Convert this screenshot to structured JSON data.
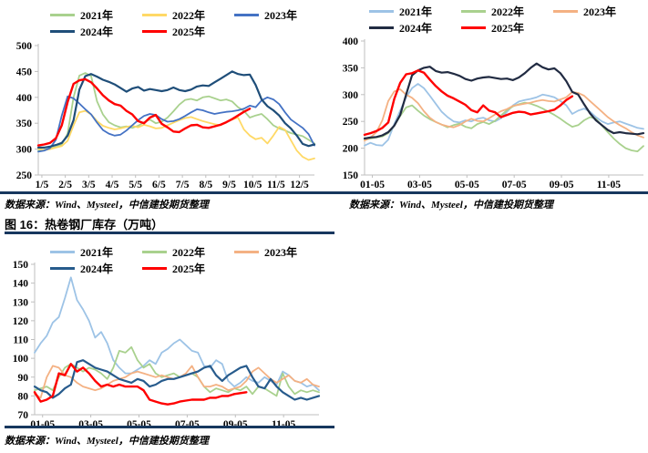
{
  "page": {
    "background": "#ffffff",
    "rule_color": "#17375E",
    "axis_color": "#BFBFBF"
  },
  "section": {
    "figure16_title": "图 16：热卷钢厂库存（万吨）"
  },
  "chart_data": [
    {
      "type": "line",
      "title": "",
      "source_note": "数据来源：Wind、Mysteel，中信建投期货整理",
      "ylim": [
        250,
        500
      ],
      "yticks": [
        250,
        300,
        350,
        400,
        450,
        500
      ],
      "xtick_labels": [
        "1/5",
        "2/5",
        "3/5",
        "4/5",
        "5/5",
        "6/5",
        "7/5",
        "8/5",
        "9/5",
        "10/5",
        "11/5",
        "12/5"
      ],
      "xtick_start_frac": 0.013,
      "xtick_step_frac": 0.0848,
      "points_per_year": 48,
      "grid": false,
      "legend_position": "top",
      "series": [
        {
          "name": "2021年",
          "color": "#A9D18E",
          "width": 1.8,
          "values": [
            297,
            299,
            301,
            304,
            309,
            330,
            400,
            442,
            447,
            441,
            392,
            367,
            352,
            346,
            342,
            344,
            341,
            345,
            352,
            357,
            350,
            353,
            361,
            373,
            386,
            395,
            397,
            394,
            400,
            402,
            398,
            394,
            396,
            392,
            381,
            374,
            361,
            365,
            368,
            358,
            346,
            340,
            336,
            331,
            328,
            325,
            318,
            311
          ]
        },
        {
          "name": "2022年",
          "color": "#FFD966",
          "width": 1.8,
          "values": [
            301,
            298,
            300,
            303,
            306,
            316,
            346,
            371,
            374,
            367,
            354,
            345,
            341,
            338,
            340,
            343,
            345,
            342,
            347,
            344,
            340,
            341,
            346,
            351,
            356,
            360,
            362,
            358,
            354,
            351,
            348,
            346,
            352,
            357,
            361,
            338,
            326,
            319,
            322,
            311,
            326,
            343,
            337,
            317,
            297,
            285,
            279,
            282
          ]
        },
        {
          "name": "2023年",
          "color": "#4472C4",
          "width": 1.8,
          "values": [
            295,
            297,
            302,
            318,
            365,
            402,
            398,
            388,
            377,
            367,
            351,
            337,
            330,
            326,
            328,
            336,
            346,
            356,
            364,
            368,
            366,
            358,
            353,
            354,
            358,
            364,
            371,
            377,
            375,
            371,
            368,
            370,
            372,
            373,
            375,
            378,
            384,
            381,
            394,
            400,
            396,
            387,
            371,
            357,
            349,
            341,
            329,
            307
          ]
        },
        {
          "name": "2024年",
          "color": "#1F4E79",
          "width": 2.2,
          "values": [
            303,
            303,
            305,
            308,
            312,
            326,
            356,
            415,
            441,
            445,
            440,
            434,
            430,
            425,
            418,
            411,
            417,
            420,
            413,
            416,
            414,
            412,
            414,
            419,
            414,
            412,
            415,
            421,
            423,
            422,
            429,
            436,
            443,
            450,
            445,
            443,
            444,
            424,
            396,
            383,
            375,
            365,
            350,
            340,
            326,
            310,
            306,
            309
          ]
        },
        {
          "name": "2025年",
          "color": "#FF0000",
          "width": 2.4,
          "values": [
            307,
            309,
            312,
            321,
            346,
            391,
            426,
            433,
            435,
            429,
            417,
            404,
            394,
            387,
            384,
            374,
            367,
            354,
            350,
            361,
            366,
            349,
            342,
            334,
            333,
            340,
            346,
            347,
            342,
            341,
            344,
            347,
            352,
            358,
            365,
            372,
            378
          ]
        }
      ]
    },
    {
      "type": "line",
      "title": "",
      "source_note": "数据来源：Wind、Mysteel，中信建投期货整理",
      "ylim": [
        150,
        400
      ],
      "yticks": [
        150,
        200,
        250,
        300,
        350,
        400
      ],
      "xtick_labels": [
        "01-05",
        "03-05",
        "05-05",
        "07-05",
        "09-05",
        "11-05"
      ],
      "xtick_start_frac": 0.028,
      "xtick_step_frac": 0.1695,
      "points_per_year": 48,
      "grid": false,
      "legend_position": "top",
      "series": [
        {
          "name": "2021年",
          "color": "#9DC3E6",
          "width": 1.8,
          "values": [
            205,
            210,
            206,
            205,
            216,
            245,
            270,
            295,
            312,
            320,
            312,
            298,
            283,
            268,
            258,
            250,
            248,
            252,
            250,
            255,
            257,
            252,
            250,
            256,
            268,
            280,
            287,
            290,
            292,
            295,
            300,
            298,
            295,
            288,
            280,
            264,
            270,
            274,
            268,
            258,
            250,
            245,
            248,
            250,
            246,
            242,
            238,
            236
          ]
        },
        {
          "name": "2022年",
          "color": "#A9D18E",
          "width": 1.8,
          "values": [
            216,
            218,
            220,
            222,
            228,
            242,
            260,
            276,
            280,
            270,
            261,
            254,
            249,
            244,
            239,
            243,
            246,
            240,
            237,
            245,
            249,
            245,
            251,
            261,
            271,
            278,
            282,
            285,
            283,
            279,
            274,
            268,
            262,
            255,
            247,
            240,
            243,
            252,
            258,
            255,
            242,
            230,
            218,
            208,
            200,
            196,
            194,
            204
          ]
        },
        {
          "name": "2023年",
          "color": "#F4B183",
          "width": 1.8,
          "values": [
            214,
            220,
            230,
            252,
            288,
            306,
            310,
            300,
            294,
            284,
            269,
            257,
            249,
            244,
            241,
            239,
            243,
            250,
            255,
            251,
            250,
            256,
            263,
            269,
            273,
            279,
            281,
            283,
            285,
            288,
            290,
            288,
            287,
            291,
            295,
            305,
            303,
            298,
            288,
            278,
            268,
            258,
            250,
            243,
            237,
            230,
            224,
            220
          ]
        },
        {
          "name": "2024年",
          "color": "#212B42",
          "width": 2.2,
          "values": [
            218,
            220,
            221,
            224,
            230,
            242,
            262,
            300,
            336,
            345,
            350,
            352,
            344,
            341,
            342,
            339,
            335,
            329,
            326,
            330,
            332,
            333,
            331,
            329,
            330,
            327,
            332,
            340,
            350,
            358,
            351,
            347,
            349,
            340,
            325,
            305,
            300,
            282,
            265,
            252,
            243,
            234,
            228,
            230,
            228,
            227,
            226,
            228
          ]
        },
        {
          "name": "2025年",
          "color": "#FF0000",
          "width": 2.4,
          "values": [
            225,
            228,
            232,
            238,
            248,
            292,
            322,
            338,
            340,
            345,
            341,
            328,
            316,
            306,
            298,
            293,
            287,
            281,
            271,
            267,
            280,
            270,
            267,
            258,
            262,
            266,
            268,
            267,
            263,
            265,
            267,
            269,
            272,
            280,
            290,
            297
          ]
        }
      ]
    },
    {
      "type": "line",
      "title": "图 16：热卷钢厂库存（万吨）",
      "source_note": "数据来源：Wind、Mysteel，中信建投期货整理",
      "ylim": [
        70,
        150
      ],
      "yticks": [
        70,
        80,
        90,
        100,
        110,
        120,
        130,
        140,
        150
      ],
      "xtick_labels": [
        "01-05",
        "03-05",
        "05-05",
        "07-05",
        "09-05",
        "11-05"
      ],
      "xtick_start_frac": 0.028,
      "xtick_step_frac": 0.1695,
      "points_per_year": 48,
      "grid": false,
      "legend_position": "top",
      "series": [
        {
          "name": "2021年",
          "color": "#9DC3E6",
          "width": 1.8,
          "values": [
            103,
            108,
            112,
            119,
            122,
            132,
            143,
            131,
            126,
            120,
            111,
            114,
            108,
            99,
            95,
            92,
            92,
            94,
            96,
            99,
            97,
            103,
            105,
            108,
            110,
            107,
            104,
            103,
            96,
            95,
            99,
            97,
            88,
            85,
            87,
            90,
            88,
            87,
            90,
            88,
            86,
            93,
            91,
            88,
            87,
            85,
            86,
            83
          ]
        },
        {
          "name": "2022年",
          "color": "#A9D18E",
          "width": 1.8,
          "values": [
            83,
            84,
            85,
            83,
            90,
            95,
            97,
            95,
            93,
            95,
            94,
            92,
            89,
            95,
            104,
            103,
            106,
            99,
            95,
            97,
            92,
            90,
            91,
            92,
            90,
            91,
            92,
            90,
            85,
            82,
            84,
            83,
            82,
            84,
            83,
            85,
            81,
            85,
            84,
            82,
            80,
            92,
            85,
            81,
            83,
            82,
            83,
            82
          ]
        },
        {
          "name": "2023年",
          "color": "#F4B183",
          "width": 1.8,
          "values": [
            81,
            79,
            90,
            96,
            95,
            91,
            90,
            87,
            85,
            84,
            83,
            84,
            86,
            88,
            89,
            90,
            92,
            93,
            92,
            91,
            90,
            91,
            90,
            89,
            90,
            92,
            96,
            90,
            85,
            85,
            86,
            85,
            83,
            84,
            85,
            88,
            93,
            95,
            92,
            89,
            87,
            89,
            91,
            88,
            87,
            89,
            86,
            85
          ]
        },
        {
          "name": "2024年",
          "color": "#275B8C",
          "width": 2.2,
          "values": [
            85,
            83,
            82,
            79,
            81,
            84,
            86,
            98,
            99,
            97,
            95,
            94,
            93,
            91,
            89,
            88,
            87,
            89,
            88,
            85,
            86,
            88,
            89,
            89,
            90,
            91,
            92,
            93,
            95,
            96,
            91,
            88,
            91,
            93,
            95,
            96,
            90,
            85,
            84,
            89,
            85,
            82,
            80,
            78,
            79,
            78,
            79,
            80
          ]
        },
        {
          "name": "2025年",
          "color": "#FF0000",
          "width": 2.4,
          "values": [
            82,
            77,
            78,
            80,
            92,
            91,
            97,
            93,
            95,
            92,
            88,
            85,
            86,
            85,
            86,
            85,
            85,
            85,
            83,
            78,
            77,
            76,
            75.5,
            76,
            77,
            77.5,
            78,
            78,
            78,
            79,
            79,
            80,
            80,
            81,
            81.5,
            82
          ]
        }
      ]
    }
  ]
}
